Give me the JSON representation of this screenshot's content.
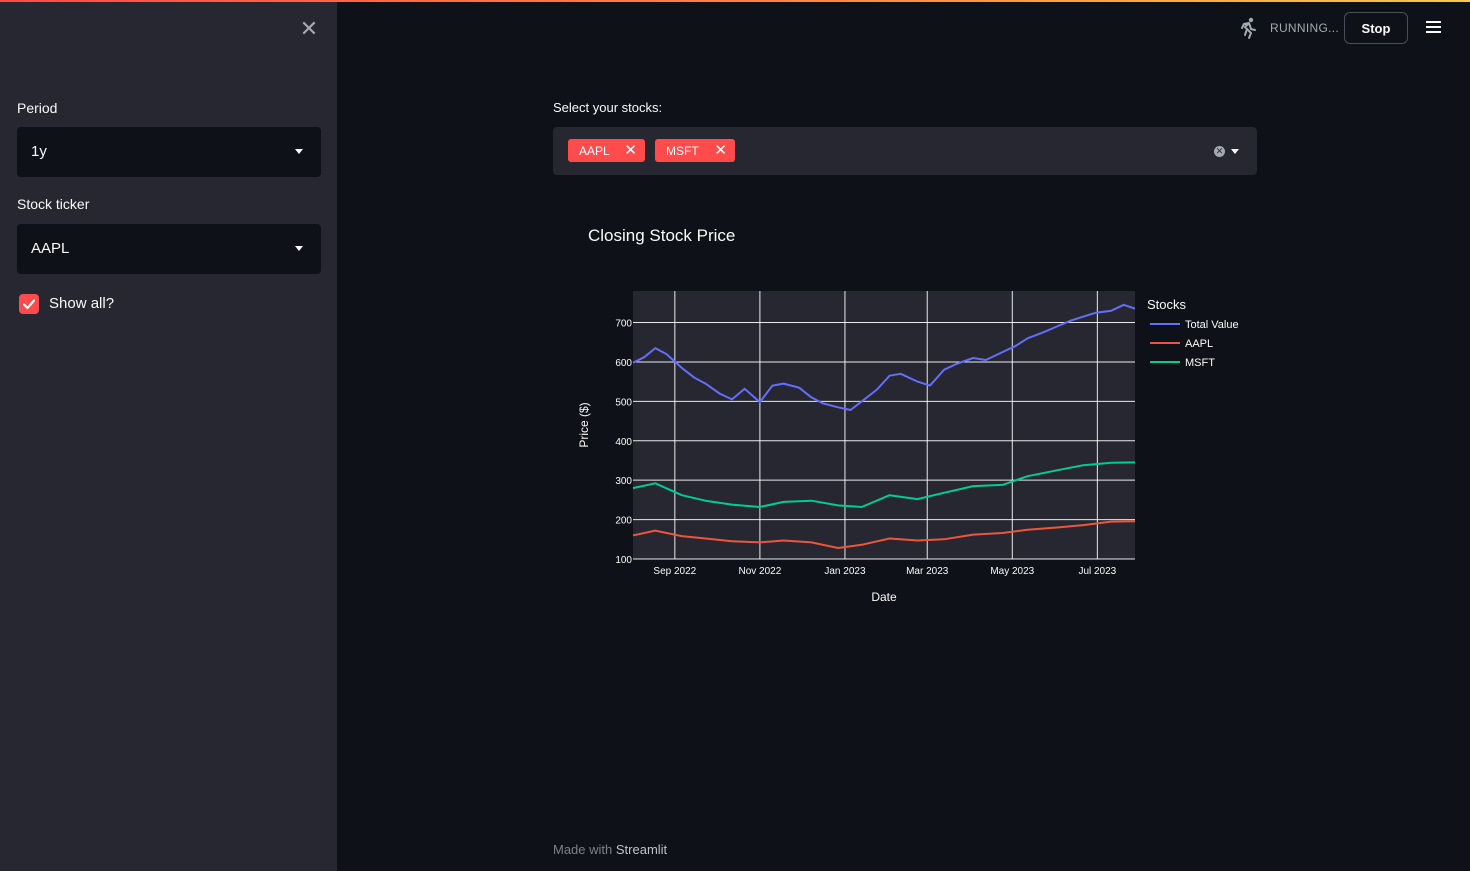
{
  "sidebar": {
    "period_label": "Period",
    "period_value": "1y",
    "ticker_label": "Stock ticker",
    "ticker_value": "AAPL",
    "show_all_label": "Show all?",
    "show_all_checked": true
  },
  "header": {
    "status_text": "RUNNING...",
    "stop_label": "Stop"
  },
  "main": {
    "multiselect_label": "Select your stocks:",
    "selected_tags": [
      "AAPL",
      "MSFT"
    ],
    "footer_prefix": "Made with",
    "footer_brand": "Streamlit"
  },
  "colors": {
    "accent": "#ff4b4b",
    "total_value": "#636efa",
    "aapl": "#ef553b",
    "msft": "#00cc96",
    "plot_bg": "#262730"
  },
  "chart_data": {
    "type": "line",
    "title": "Closing Stock Price",
    "xlabel": "Date",
    "ylabel": "Price ($)",
    "legend_title": "Stocks",
    "legend_position": "right",
    "grid": true,
    "x_range": [
      "2022-08-02",
      "2023-07-28"
    ],
    "ylim": [
      100,
      780
    ],
    "y_ticks": [
      100,
      200,
      300,
      400,
      500,
      600,
      700
    ],
    "x_ticks": [
      {
        "date": "2022-09-01",
        "label": "Sep 2022"
      },
      {
        "date": "2022-11-01",
        "label": "Nov 2022"
      },
      {
        "date": "2023-01-01",
        "label": "Jan 2023"
      },
      {
        "date": "2023-03-01",
        "label": "Mar 2023"
      },
      {
        "date": "2023-05-01",
        "label": "May 2023"
      },
      {
        "date": "2023-07-01",
        "label": "Jul 2023"
      }
    ],
    "series": [
      {
        "name": "Total Value",
        "color": "#636efa",
        "x": [
          "2022-08-02",
          "2022-08-10",
          "2022-08-18",
          "2022-08-26",
          "2022-09-06",
          "2022-09-15",
          "2022-09-23",
          "2022-10-03",
          "2022-10-12",
          "2022-10-21",
          "2022-11-01",
          "2022-11-10",
          "2022-11-18",
          "2022-11-29",
          "2022-12-08",
          "2022-12-16",
          "2022-12-27",
          "2023-01-05",
          "2023-01-13",
          "2023-01-24",
          "2023-02-02",
          "2023-02-10",
          "2023-02-22",
          "2023-03-03",
          "2023-03-13",
          "2023-03-22",
          "2023-04-03",
          "2023-04-12",
          "2023-04-24",
          "2023-05-03",
          "2023-05-12",
          "2023-05-23",
          "2023-06-02",
          "2023-06-12",
          "2023-06-21",
          "2023-06-30",
          "2023-07-11",
          "2023-07-20",
          "2023-07-28"
        ],
        "y": [
          598,
          612,
          635,
          620,
          585,
          560,
          545,
          520,
          505,
          532,
          498,
          540,
          545,
          535,
          510,
          495,
          485,
          478,
          500,
          530,
          565,
          570,
          550,
          540,
          580,
          595,
          610,
          605,
          625,
          640,
          660,
          675,
          690,
          705,
          715,
          725,
          730,
          745,
          735
        ]
      },
      {
        "name": "AAPL",
        "color": "#ef553b",
        "x": [
          "2022-08-02",
          "2022-08-18",
          "2022-09-06",
          "2022-09-23",
          "2022-10-12",
          "2022-11-01",
          "2022-11-18",
          "2022-12-08",
          "2022-12-27",
          "2023-01-13",
          "2023-02-02",
          "2023-02-22",
          "2023-03-13",
          "2023-04-03",
          "2023-04-24",
          "2023-05-12",
          "2023-06-02",
          "2023-06-21",
          "2023-07-11",
          "2023-07-28"
        ],
        "y": [
          160,
          172,
          158,
          152,
          145,
          142,
          147,
          142,
          128,
          136,
          152,
          147,
          150,
          162,
          166,
          174,
          180,
          186,
          195,
          196
        ]
      },
      {
        "name": "MSFT",
        "color": "#00cc96",
        "x": [
          "2022-08-02",
          "2022-08-18",
          "2022-09-06",
          "2022-09-23",
          "2022-10-12",
          "2022-11-01",
          "2022-11-18",
          "2022-12-08",
          "2022-12-27",
          "2023-01-13",
          "2023-02-02",
          "2023-02-22",
          "2023-03-13",
          "2023-04-03",
          "2023-04-24",
          "2023-05-12",
          "2023-06-02",
          "2023-06-21",
          "2023-07-11",
          "2023-07-28"
        ],
        "y": [
          280,
          292,
          262,
          248,
          238,
          232,
          245,
          248,
          236,
          232,
          262,
          252,
          268,
          285,
          288,
          310,
          325,
          338,
          344,
          345
        ]
      }
    ]
  }
}
